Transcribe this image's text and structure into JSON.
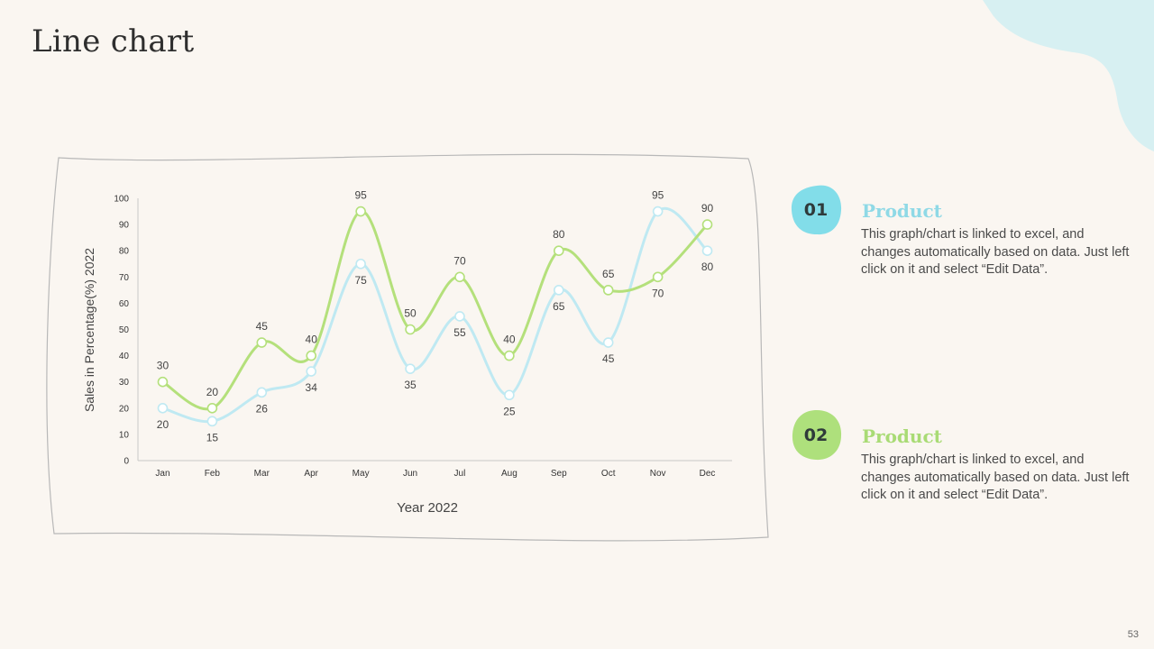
{
  "slide": {
    "title": "Line chart",
    "page_number": "53"
  },
  "colors": {
    "series_1": "#bfe9f2",
    "series_2": "#b4e07b",
    "accent_blob": "#d7f0f2"
  },
  "legend": [
    {
      "number": "01",
      "title": "Product",
      "description": "This graph/chart is linked to excel, and changes automatically based on data. Just left click on it and select “Edit Data”.",
      "badge_color": "#82dde9",
      "title_color": "#8fd9e6"
    },
    {
      "number": "02",
      "title": "Product",
      "description": "This graph/chart is linked to excel, and changes automatically based on data. Just left click on it and select “Edit Data”.",
      "badge_color": "#aee07c",
      "title_color": "#a9db75"
    }
  ],
  "chart_data": {
    "type": "line",
    "categories": [
      "Jan",
      "Feb",
      "Mar",
      "Apr",
      "May",
      "Jun",
      "Jul",
      "Aug",
      "Sep",
      "Oct",
      "Nov",
      "Dec"
    ],
    "series": [
      {
        "values": [
          20,
          15,
          26,
          34,
          75,
          35,
          55,
          25,
          65,
          45,
          95,
          80
        ],
        "color": "#bfe9f2"
      },
      {
        "values": [
          30,
          20,
          45,
          40,
          95,
          50,
          70,
          40,
          80,
          65,
          70,
          90
        ],
        "color": "#b4e07b"
      }
    ],
    "ylabel": "Sales in Percentage(%)  2022",
    "xlabel": "Year 2022",
    "ylim": [
      0,
      100
    ],
    "yticks": [
      0,
      10,
      20,
      30,
      40,
      50,
      60,
      70,
      80,
      90,
      100
    ],
    "smooth": true,
    "data_labels": true,
    "grid": false
  }
}
